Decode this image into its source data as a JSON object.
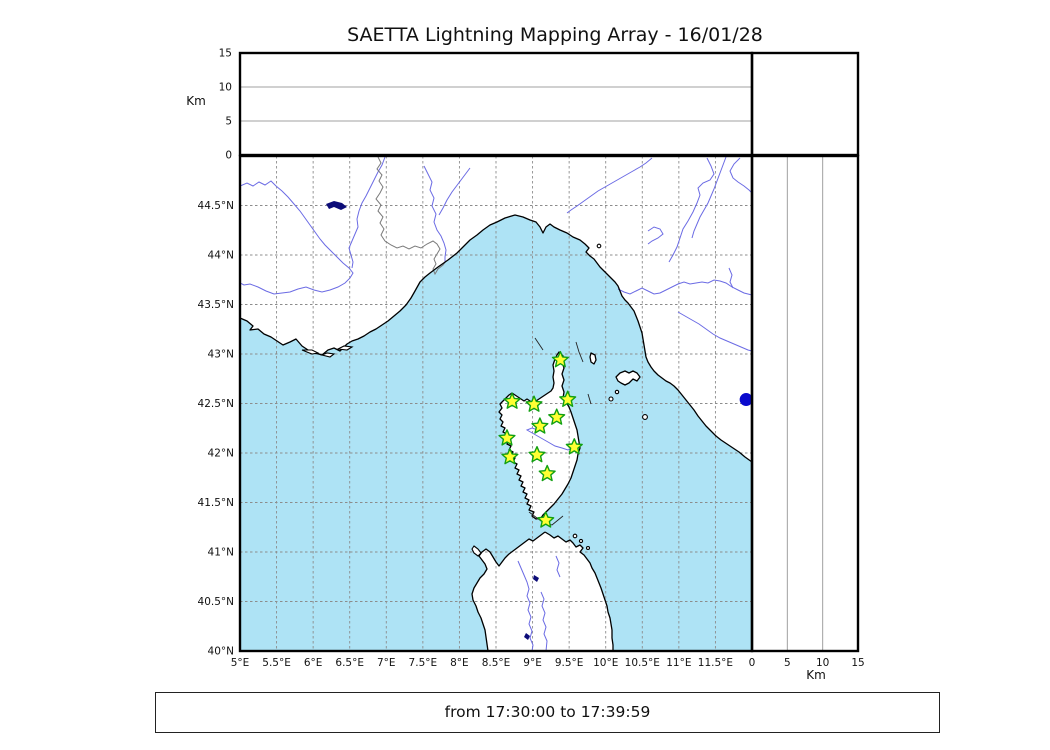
{
  "title": "SAETTA Lightning Mapping Array - 16/01/28",
  "footer": {
    "text": "from 17:30:00 to 17:39:59"
  },
  "altitude_axis": {
    "label": "Km",
    "tick_labels": [
      "0",
      "5",
      "10",
      "15"
    ],
    "tick_values": [
      0,
      5,
      10,
      15
    ],
    "max": 15,
    "gridlines_at": [
      5,
      10
    ]
  },
  "map": {
    "lon_min": 5,
    "lon_max": 12,
    "lat_min": 40,
    "lat_max": 45,
    "lon_tick_labels": [
      "5°E",
      "5.5°E",
      "6°E",
      "6.5°E",
      "7°E",
      "7.5°E",
      "8°E",
      "8.5°E",
      "9°E",
      "9.5°E",
      "10°E",
      "10.5°E",
      "11°E",
      "11.5°E"
    ],
    "lon_tick_values": [
      5,
      5.5,
      6,
      6.5,
      7,
      7.5,
      8,
      8.5,
      9,
      9.5,
      10,
      10.5,
      11,
      11.5
    ],
    "lat_tick_labels": [
      "44.5°N",
      "44°N",
      "43.5°N",
      "43°N",
      "42.5°N",
      "42°N",
      "41.5°N",
      "41°N",
      "40.5°N",
      "40°N"
    ],
    "lat_tick_values": [
      44.5,
      44,
      43.5,
      43,
      42.5,
      42,
      41.5,
      41,
      40.5,
      40
    ],
    "stations": [
      {
        "lon": 9.38,
        "lat": 42.94
      },
      {
        "lon": 8.72,
        "lat": 42.52
      },
      {
        "lon": 9.02,
        "lat": 42.49
      },
      {
        "lon": 9.48,
        "lat": 42.54
      },
      {
        "lon": 9.33,
        "lat": 42.36
      },
      {
        "lon": 9.1,
        "lat": 42.27
      },
      {
        "lon": 8.65,
        "lat": 42.15
      },
      {
        "lon": 9.57,
        "lat": 42.06
      },
      {
        "lon": 9.06,
        "lat": 41.98
      },
      {
        "lon": 8.69,
        "lat": 41.96
      },
      {
        "lon": 9.2,
        "lat": 41.79
      },
      {
        "lon": 9.18,
        "lat": 41.32
      }
    ],
    "event_point": {
      "lon": 11.92,
      "lat": 42.54
    }
  },
  "colors": {
    "sea": "#aee3f5",
    "land": "#ffffff",
    "coast": "#000000",
    "river": "#6b6be4",
    "country_border": "#7a7a7a",
    "map_grid": "#8c8c8c",
    "panel_grid": "#a0a0a0",
    "station_fill": "#ffff33",
    "station_stroke": "#12a012",
    "event_fill": "#0a0acd",
    "lake": "#0c0c78"
  },
  "chart_data": {
    "type": "map",
    "title": "SAETTA Lightning Mapping Array - 16/01/28",
    "time_window": "from 17:30:00 to 17:39:59",
    "panels": [
      "altitude-vs-longitude (Km 0-15)",
      "plan map 5E-12E / 40N-45N",
      "altitude-vs-latitude (Km 0-15)"
    ],
    "station_points_lon_lat": [
      [
        9.38,
        42.94
      ],
      [
        8.72,
        42.52
      ],
      [
        9.02,
        42.49
      ],
      [
        9.48,
        42.54
      ],
      [
        9.33,
        42.36
      ],
      [
        9.1,
        42.27
      ],
      [
        8.65,
        42.15
      ],
      [
        9.57,
        42.06
      ],
      [
        9.06,
        41.98
      ],
      [
        8.69,
        41.96
      ],
      [
        9.2,
        41.79
      ],
      [
        9.18,
        41.32
      ]
    ],
    "event_points_lon_lat": [
      [
        11.92,
        42.54
      ]
    ]
  }
}
